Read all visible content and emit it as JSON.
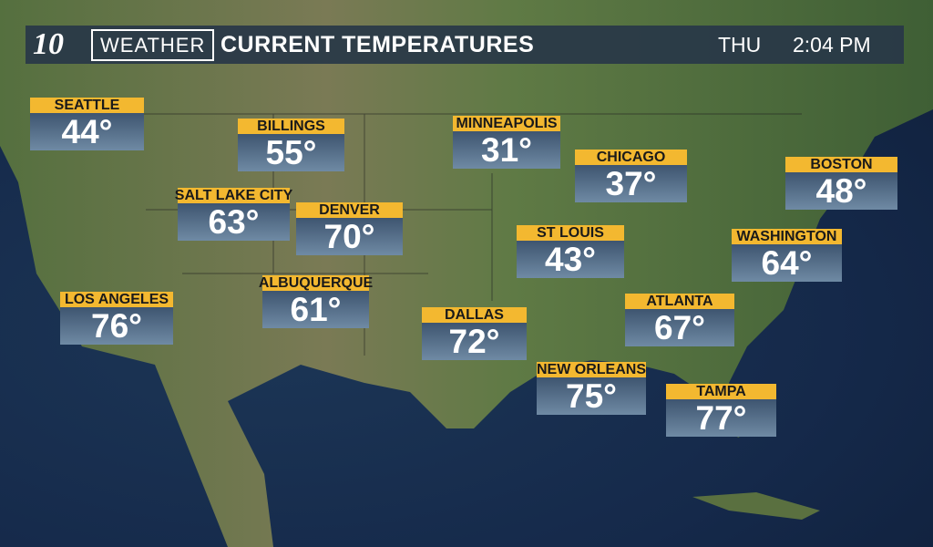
{
  "header": {
    "logo": "10",
    "brand": "WEATHER",
    "title": "CURRENT TEMPERATURES",
    "day": "THU",
    "time": "2:04 PM"
  },
  "cities": [
    {
      "name": "SEATTLE",
      "temp": "44°"
    },
    {
      "name": "BILLINGS",
      "temp": "55°"
    },
    {
      "name": "MINNEAPOLIS",
      "temp": "31°"
    },
    {
      "name": "CHICAGO",
      "temp": "37°"
    },
    {
      "name": "BOSTON",
      "temp": "48°"
    },
    {
      "name": "SALT LAKE CITY",
      "temp": "63°"
    },
    {
      "name": "DENVER",
      "temp": "70°"
    },
    {
      "name": "ST LOUIS",
      "temp": "43°"
    },
    {
      "name": "WASHINGTON",
      "temp": "64°"
    },
    {
      "name": "ALBUQUERQUE",
      "temp": "61°"
    },
    {
      "name": "LOS ANGELES",
      "temp": "76°"
    },
    {
      "name": "DALLAS",
      "temp": "72°"
    },
    {
      "name": "ATLANTA",
      "temp": "67°"
    },
    {
      "name": "NEW ORLEANS",
      "temp": "75°"
    },
    {
      "name": "TAMPA",
      "temp": "77°"
    }
  ],
  "colors": {
    "label": "#f3b830",
    "ocean": "#15294a",
    "land": "#4f6b3c"
  }
}
